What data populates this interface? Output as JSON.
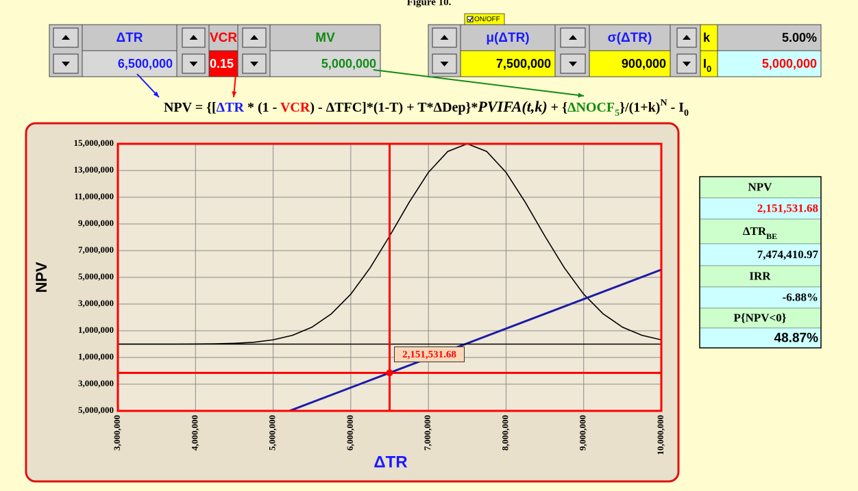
{
  "header": {
    "title": "Figure 10."
  },
  "controls": {
    "toggle": "ON/OFF",
    "inputs": [
      {
        "label": "ΔTR",
        "value": "6,500,000"
      },
      {
        "label": "VCR",
        "value": "0.15"
      },
      {
        "label": "MV",
        "value": "5,000,000"
      },
      {
        "label": "μ(ΔTR)",
        "value": "7,500,000"
      },
      {
        "label": "σ(ΔTR)",
        "value": "900,000"
      },
      {
        "label": "k",
        "value": "5.00%"
      },
      {
        "label": "I",
        "label_sub": "0",
        "value": "5,000,000"
      }
    ]
  },
  "formula": [
    "NPV = {[",
    "ΔTR",
    " * (1 - ",
    "VCR",
    ") - ΔTFC]*(1-T) + T*ΔDep}*",
    "PVIFA(t,k)",
    "  + {",
    "ΔNOCF",
    "5",
    "}/(1+k)",
    "N",
    " - I",
    "0"
  ],
  "chart_data": {
    "type": "line",
    "xlabel": "ΔTR",
    "ylabel": "NPV",
    "xlim": [
      3000000,
      10000000
    ],
    "xticks": [
      {
        "value": 3000000,
        "label": "3,000,000"
      },
      {
        "value": 4000000,
        "label": "4,000,000"
      },
      {
        "value": 5000000,
        "label": "5,000,000"
      },
      {
        "value": 6000000,
        "label": "6,000,000"
      },
      {
        "value": 7000000,
        "label": "7,000,000"
      },
      {
        "value": 8000000,
        "label": "8,000,000"
      },
      {
        "value": 9000000,
        "label": "9,000,000"
      },
      {
        "value": 10000000,
        "label": "10,000,000"
      }
    ],
    "ylim": [
      -5000000,
      15000000
    ],
    "yticks": [
      {
        "value": 15000000,
        "label": "15,000,000"
      },
      {
        "value": 13000000,
        "label": "13,000,000"
      },
      {
        "value": 11000000,
        "label": "11,000,000"
      },
      {
        "value": 9000000,
        "label": "9,000,000"
      },
      {
        "value": 7000000,
        "label": "7,000,000"
      },
      {
        "value": 5000000,
        "label": "5,000,000"
      },
      {
        "value": 3000000,
        "label": "3,000,000"
      },
      {
        "value": 1000000,
        "label": "1,000,000"
      },
      {
        "value": -1000000,
        "label": "1,000,000"
      },
      {
        "value": -3000000,
        "label": "3,000,000"
      },
      {
        "value": -5000000,
        "label": "5,000,000"
      }
    ],
    "grid": true,
    "series": [
      {
        "color": "#000000",
        "x": [
          3000000,
          3250000,
          3500000,
          3750000,
          4000000,
          4250000,
          4500000,
          4750000,
          5000000,
          5250000,
          5500000,
          5750000,
          6000000,
          6250000,
          6500000,
          6750000,
          7000000,
          7250000,
          7500000,
          7750000,
          8000000,
          8250000,
          8500000,
          8750000,
          9000000,
          9250000,
          9500000,
          9750000,
          10000000
        ],
        "values": [
          0,
          0,
          0,
          0,
          10000,
          20000,
          60000,
          140000,
          320000,
          660000,
          1270000,
          2270000,
          3740000,
          5720000,
          8090000,
          10600000,
          12860000,
          14430000,
          15000000,
          14430000,
          12860000,
          10600000,
          8090000,
          5720000,
          3740000,
          2270000,
          1270000,
          660000,
          320000
        ]
      },
      {
        "color": "#1c1ca8",
        "x": [
          5200000,
          6500000,
          7474410.97,
          10000000
        ],
        "values": [
          -5021900,
          -2151531.68,
          0,
          5576100
        ]
      },
      {
        "color": "#000000",
        "x": [
          3000000,
          10000000
        ],
        "values": [
          0,
          0
        ]
      }
    ],
    "marker": {
      "x": 6500000,
      "y": -2151531.68,
      "label": "2,151,531.68",
      "color": "#ff0000"
    }
  },
  "results": [
    {
      "label": "NPV",
      "value": "2,151,531.68"
    },
    {
      "label": "ΔTR",
      "label_sub": "BE",
      "value": "7,474,410.97"
    },
    {
      "label": "IRR",
      "value": "-6.88%"
    },
    {
      "label": "P{NPV<0}",
      "value": "48.87%"
    }
  ]
}
